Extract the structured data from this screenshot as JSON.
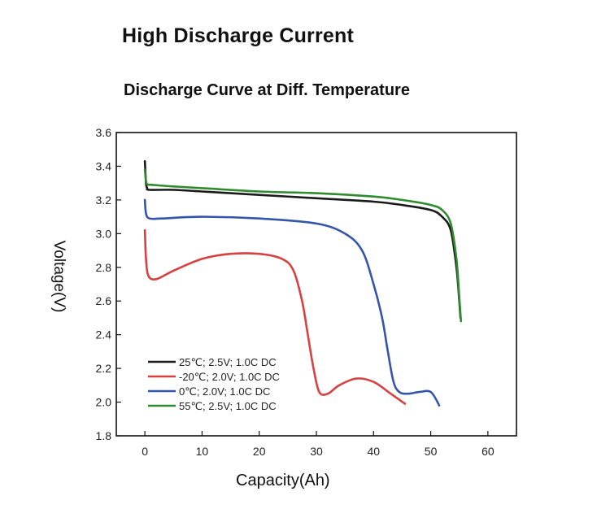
{
  "page_title": "High Discharge Current",
  "chart_data": {
    "type": "line",
    "title": "Discharge Curve at Diff. Temperature",
    "xlabel": "Capacity(Ah)",
    "ylabel": "Voltage(V)",
    "xlim": [
      -5,
      65
    ],
    "ylim": [
      1.8,
      3.6
    ],
    "xticks": [
      0,
      10,
      20,
      30,
      40,
      50,
      60
    ],
    "yticks": [
      1.8,
      2.0,
      2.2,
      2.4,
      2.6,
      2.8,
      3.0,
      3.2,
      3.4,
      3.6
    ],
    "xtick_labels": [
      "0",
      "10",
      "20",
      "30",
      "40",
      "50",
      "60"
    ],
    "ytick_labels": [
      "1.8",
      "2.0",
      "2.2",
      "2.4",
      "2.6",
      "2.8",
      "3.0",
      "3.2",
      "3.4",
      "3.6"
    ],
    "grid": false,
    "legend_position": "bottom-left",
    "series": [
      {
        "name": "25℃; 2.5V; 1.0C DC",
        "color": "#1a1a1a",
        "x": [
          0,
          0.2,
          0.4,
          0.8,
          5,
          10,
          20,
          30,
          40,
          45,
          50,
          52,
          53.5,
          54.5,
          55,
          55.2
        ],
        "y": [
          3.43,
          3.3,
          3.27,
          3.26,
          3.26,
          3.25,
          3.23,
          3.21,
          3.19,
          3.17,
          3.14,
          3.1,
          3.02,
          2.8,
          2.6,
          2.5
        ]
      },
      {
        "name": "-20℃; 2.0V; 1.0C DC",
        "color": "#d94040",
        "x": [
          0,
          0.2,
          0.6,
          2,
          5,
          10,
          15,
          20,
          24,
          26,
          27.5,
          28.5,
          29.5,
          30.5,
          32,
          34,
          37,
          40,
          43,
          45.5
        ],
        "y": [
          3.02,
          2.85,
          2.75,
          2.73,
          2.78,
          2.85,
          2.88,
          2.88,
          2.85,
          2.78,
          2.6,
          2.4,
          2.2,
          2.06,
          2.05,
          2.1,
          2.14,
          2.12,
          2.05,
          1.99
        ]
      },
      {
        "name": "0℃; 2.0V; 1.0C DC",
        "color": "#3355aa",
        "x": [
          0,
          0.2,
          0.8,
          3,
          10,
          20,
          30,
          35,
          38,
          40,
          41.5,
          42.5,
          43.5,
          44.5,
          46,
          48,
          50,
          51.5
        ],
        "y": [
          3.2,
          3.12,
          3.09,
          3.09,
          3.1,
          3.09,
          3.06,
          3.0,
          2.9,
          2.7,
          2.5,
          2.3,
          2.12,
          2.06,
          2.05,
          2.06,
          2.06,
          1.98
        ]
      },
      {
        "name": "55℃; 2.5V; 1.0C DC",
        "color": "#2e8b2e",
        "x": [
          0,
          0.2,
          0.5,
          1,
          5,
          10,
          20,
          30,
          40,
          45,
          50,
          52,
          53.5,
          54.5,
          55,
          55.3
        ],
        "y": [
          3.38,
          3.31,
          3.29,
          3.29,
          3.28,
          3.27,
          3.25,
          3.24,
          3.22,
          3.2,
          3.17,
          3.14,
          3.06,
          2.85,
          2.62,
          2.48
        ]
      }
    ]
  }
}
